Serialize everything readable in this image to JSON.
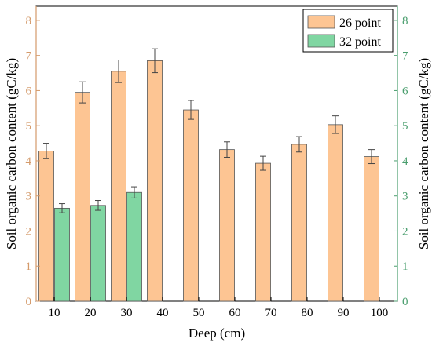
{
  "chart_data": {
    "type": "bar",
    "categories": [
      "10",
      "20",
      "30",
      "40",
      "50",
      "60",
      "70",
      "80",
      "90",
      "100"
    ],
    "series": [
      {
        "name": "26 point",
        "values": [
          4.28,
          5.95,
          6.55,
          6.85,
          5.45,
          4.32,
          3.93,
          4.47,
          5.03,
          4.12
        ],
        "errors": [
          0.22,
          0.3,
          0.32,
          0.34,
          0.27,
          0.22,
          0.2,
          0.22,
          0.25,
          0.2
        ]
      },
      {
        "name": "32 point",
        "values": [
          2.65,
          2.73,
          3.1,
          null,
          null,
          null,
          null,
          null,
          null,
          null
        ],
        "errors": [
          0.13,
          0.14,
          0.16,
          null,
          null,
          null,
          null,
          null,
          null,
          null
        ]
      }
    ],
    "xlabel": "Deep (cm)",
    "ylabel": "Soil organic carbon content (gC/kg)",
    "ylabel_right": "Soil organic carbon content (gC/kg)",
    "ylim": [
      0,
      8.4
    ],
    "yticks": [
      "0",
      "1",
      "2",
      "3",
      "4",
      "5",
      "6",
      "7",
      "8"
    ],
    "legend_position": "top-right",
    "grid": false,
    "colors": {
      "series": [
        "#fdc593",
        "#80d6a2"
      ],
      "left_axis": "#d49a6a",
      "right_axis": "#4a9e6e",
      "bar_edge": "#555555",
      "error_bar": "#444444"
    }
  }
}
